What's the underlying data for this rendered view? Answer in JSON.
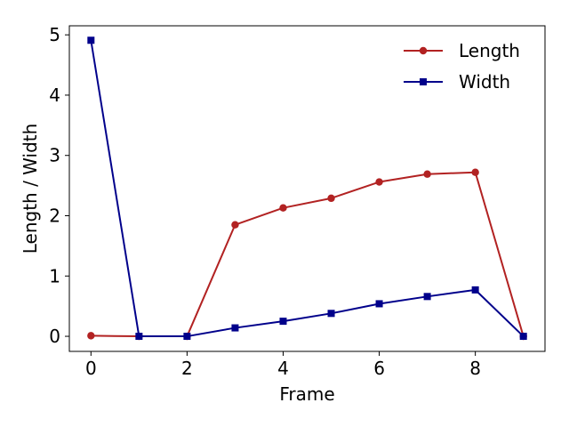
{
  "chart_data": {
    "type": "line",
    "title": "",
    "xlabel": "Frame",
    "ylabel": "Length / Width",
    "xlim": [
      -0.45,
      9.45
    ],
    "ylim": [
      -0.25,
      5.15
    ],
    "xticks": [
      0,
      2,
      4,
      6,
      8
    ],
    "xtick_labels": [
      "0",
      "2",
      "4",
      "6",
      "8"
    ],
    "yticks": [
      0,
      1,
      2,
      3,
      4,
      5
    ],
    "ytick_labels": [
      "0",
      "1",
      "2",
      "3",
      "4",
      "5"
    ],
    "grid": false,
    "legend_position": "top-right",
    "x": [
      0,
      1,
      2,
      3,
      4,
      5,
      6,
      7,
      8,
      9
    ],
    "series": [
      {
        "name": "Length",
        "color": "#b22222",
        "marker": "circle",
        "values": [
          0.01,
          0.0,
          0.0,
          1.85,
          2.13,
          2.29,
          2.56,
          2.69,
          2.72,
          0.0
        ]
      },
      {
        "name": "Width",
        "color": "#00008b",
        "marker": "square",
        "values": [
          4.91,
          0.0,
          0.0,
          0.14,
          0.25,
          0.38,
          0.54,
          0.66,
          0.77,
          0.0
        ]
      }
    ]
  }
}
